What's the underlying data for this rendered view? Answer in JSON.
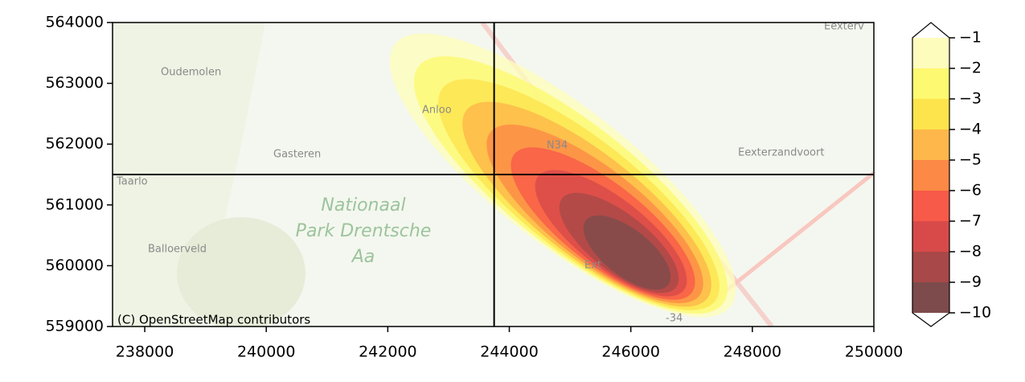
{
  "chart_data": {
    "type": "contour_map",
    "xlim": [
      237470,
      250000
    ],
    "ylim": [
      559000,
      564000
    ],
    "xticks": [
      238000,
      240000,
      242000,
      244000,
      246000,
      248000,
      250000
    ],
    "yticks": [
      559000,
      560000,
      561000,
      562000,
      563000,
      564000
    ],
    "crosshair": {
      "x": 243750,
      "y": 561500
    },
    "colorbar": {
      "ticks": [
        {
          "value": -10,
          "label": "−10"
        },
        {
          "value": -9,
          "label": "−9"
        },
        {
          "value": -8,
          "label": "−8"
        },
        {
          "value": -7,
          "label": "−7"
        },
        {
          "value": -6,
          "label": "−6"
        },
        {
          "value": -5,
          "label": "−5"
        },
        {
          "value": -4,
          "label": "−4"
        },
        {
          "value": -3,
          "label": "−3"
        },
        {
          "value": -2,
          "label": "−2"
        },
        {
          "value": -1,
          "label": "−1"
        }
      ],
      "colors": [
        "#7d4b4b",
        "#a84848",
        "#d84a4a",
        "#f75a48",
        "#fc8945",
        "#fdb74a",
        "#fde44c",
        "#fdf971",
        "#fefcbd"
      ]
    },
    "map_labels": {
      "oudemolen": "Oudemolen",
      "anloo": "Anloo",
      "gasteren": "Gasteren",
      "taarlo": "Taarlo",
      "park1": "Nationaal",
      "park2": "Park Drentsche",
      "park3": "Aa",
      "balloerveld": "Balloerveld",
      "eexterzandvoort": "Eexterzandvoort",
      "eexterv": "Eexterv",
      "n34": "N34",
      "ext": "Ext",
      "n34b": "-34"
    },
    "attribution": "(C) OpenStreetMap contributors"
  }
}
